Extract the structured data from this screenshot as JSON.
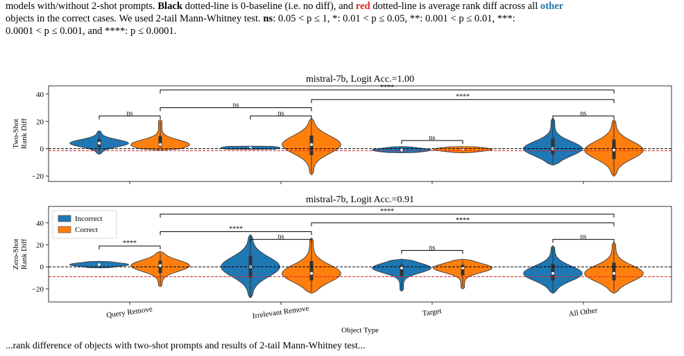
{
  "caption": {
    "line1_start": "models with/without 2-shot prompts. ",
    "black_word": "Black",
    "line1_mid": " dotted-line is 0-baseline (i.e. no diff), and ",
    "red_word": "red",
    "line1_mid2": " dotted-line is average rank diff across all ",
    "other_word": "other",
    "line2": "objects in the correct cases. We used 2-tail Mann-Whitney test. ",
    "ns_word": "ns",
    "line2_rest": ": 0.05 < p ≤ 1, *: 0.01 < p ≤ 0.05, **: 0.001 < p ≤ 0.01, ***:",
    "line3": "0.0001 < p ≤ 0.001, and ****: p ≤ 0.0001.",
    "bottom": "...rank difference of objects with two-shot prompts and results of 2-tail Mann-Whitney test..."
  },
  "chart_data": [
    {
      "type": "violin",
      "title": "mistral-7b, Logit Acc.=1.00",
      "ylabel": "Two-Shot Rank Diff",
      "ylim": [
        -24,
        46
      ],
      "yticks": [
        -20,
        0,
        20,
        40
      ],
      "baseline": 0,
      "avg_other_correct": -1.5,
      "categories": [
        "Query Remove",
        "Irrelevant Remove",
        "Target",
        "All Other"
      ],
      "series": [
        {
          "name": "Incorrect",
          "color": "#1f77b4",
          "violins": [
            {
              "category": "Query Remove",
              "min": -4,
              "max": 13,
              "median": 4
            },
            {
              "category": "Irrelevant Remove",
              "min": -0.5,
              "max": 1.8,
              "median": 0.6
            },
            {
              "category": "Target",
              "min": -3,
              "max": 1.5,
              "median": -1
            },
            {
              "category": "All Other",
              "min": -12,
              "max": 22,
              "median": 0
            }
          ]
        },
        {
          "name": "Correct",
          "color": "#ff7f0e",
          "violins": [
            {
              "category": "Query Remove",
              "min": -1,
              "max": 21,
              "median": 3
            },
            {
              "category": "Irrelevant Remove",
              "min": -19,
              "max": 22,
              "median": 3
            },
            {
              "category": "Target",
              "min": -3,
              "max": 1.5,
              "median": -0.5
            },
            {
              "category": "All Other",
              "min": -20,
              "max": 21,
              "median": -1
            }
          ]
        }
      ],
      "significance": [
        {
          "from": "Query Remove:Incorrect",
          "to": "Query Remove:Correct",
          "label": "ns",
          "y": 24
        },
        {
          "from": "Query Remove:Correct",
          "to": "Irrelevant Remove:Correct",
          "label": "ns",
          "y": 30
        },
        {
          "from": "Irrelevant Remove:Incorrect",
          "to": "Irrelevant Remove:Correct",
          "label": "ns",
          "y": 24
        },
        {
          "from": "Target:Incorrect",
          "to": "Target:Correct",
          "label": "ns",
          "y": 6
        },
        {
          "from": "All Other:Incorrect",
          "to": "All Other:Correct",
          "label": "ns",
          "y": 24
        },
        {
          "from": "Irrelevant Remove:Correct",
          "to": "All Other:Correct",
          "label": "****",
          "y": 36
        },
        {
          "from": "Query Remove:Correct",
          "to": "All Other:Correct",
          "label": "****",
          "y": 43
        }
      ]
    },
    {
      "type": "violin",
      "title": "mistral-7b, Logit Acc.=0.91",
      "ylabel": "Zero-Shot Rank Diff",
      "xlabel": "Object Type",
      "ylim": [
        -32,
        55
      ],
      "yticks": [
        -20,
        0,
        20,
        40
      ],
      "baseline": 0,
      "avg_other_correct": -9,
      "categories": [
        "Query Remove",
        "Irrelevant Remove",
        "Target",
        "All Other"
      ],
      "legend": {
        "position": "upper-left",
        "entries": [
          "Incorrect",
          "Correct"
        ]
      },
      "series": [
        {
          "name": "Incorrect",
          "color": "#1f77b4",
          "violins": [
            {
              "category": "Query Remove",
              "min": -1,
              "max": 5,
              "median": 2
            },
            {
              "category": "Irrelevant Remove",
              "min": -28,
              "max": 29,
              "median": 0
            },
            {
              "category": "Target",
              "min": -22,
              "max": 7,
              "median": -1
            },
            {
              "category": "All Other",
              "min": -24,
              "max": 19,
              "median": -6
            }
          ]
        },
        {
          "name": "Correct",
          "color": "#ff7f0e",
          "violins": [
            {
              "category": "Query Remove",
              "min": -18,
              "max": 14,
              "median": 1
            },
            {
              "category": "Irrelevant Remove",
              "min": -24,
              "max": 26,
              "median": -6
            },
            {
              "category": "Target",
              "min": -20,
              "max": 7,
              "median": -1
            },
            {
              "category": "All Other",
              "min": -24,
              "max": 22,
              "median": -6
            }
          ]
        }
      ],
      "significance": [
        {
          "from": "Query Remove:Incorrect",
          "to": "Query Remove:Correct",
          "label": "****",
          "y": 19
        },
        {
          "from": "Irrelevant Remove:Incorrect",
          "to": "Irrelevant Remove:Correct",
          "label": "ns",
          "y": 25
        },
        {
          "from": "Target:Incorrect",
          "to": "Target:Correct",
          "label": "ns",
          "y": 15
        },
        {
          "from": "All Other:Incorrect",
          "to": "All Other:Correct",
          "label": "ns",
          "y": 25
        },
        {
          "from": "Query Remove:Correct",
          "to": "Irrelevant Remove:Correct",
          "label": "****",
          "y": 32
        },
        {
          "from": "Irrelevant Remove:Correct",
          "to": "All Other:Correct",
          "label": "****",
          "y": 40
        },
        {
          "from": "Query Remove:Correct",
          "to": "All Other:Correct",
          "label": "****",
          "y": 48
        }
      ]
    }
  ]
}
